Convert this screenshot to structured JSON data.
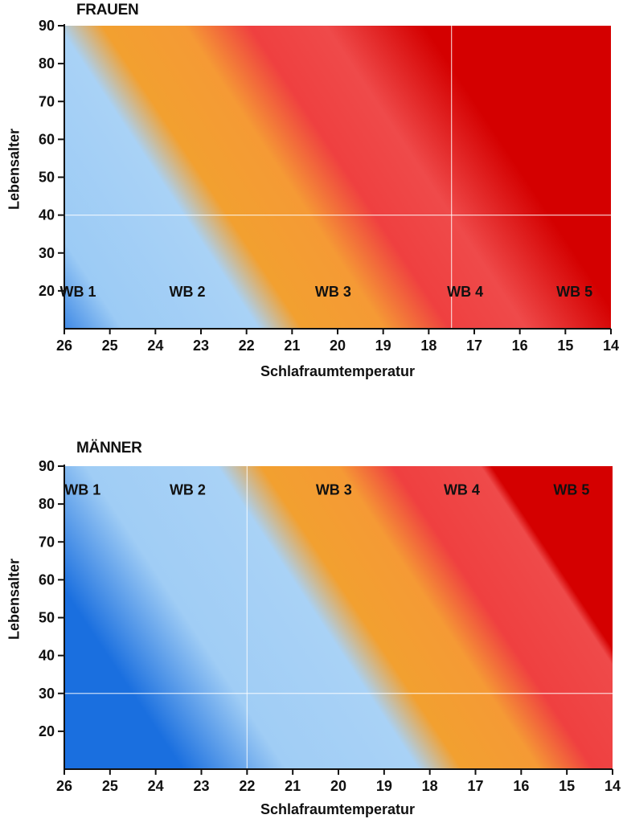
{
  "chart_data": [
    {
      "type": "heatmap",
      "title": "FRAUEN",
      "xlabel": "Schlafraumtemperatur",
      "ylabel": "Lebensalter",
      "x_ticks": [
        26,
        25,
        24,
        23,
        22,
        21,
        20,
        19,
        18,
        17,
        16,
        15,
        14
      ],
      "y_ticks": [
        20,
        30,
        40,
        50,
        60,
        70,
        80,
        90
      ],
      "xlim": [
        26,
        14
      ],
      "ylim": [
        10,
        90
      ],
      "x_reversed": true,
      "grid": false,
      "reference_lines": {
        "x": 17.5,
        "y": 40
      },
      "zones": [
        {
          "label": "WB 1",
          "color": "#1a6fdf"
        },
        {
          "label": "WB 2",
          "color": "#9ccbf5"
        },
        {
          "label": "WB 3",
          "color": "#f2a030"
        },
        {
          "label": "WB 4",
          "color": "#ef4040"
        },
        {
          "label": "WB 5",
          "color": "#d40000"
        }
      ],
      "zone_label_positions": [
        {
          "label": "WB 1",
          "x": 25.7,
          "y": 20
        },
        {
          "label": "WB 2",
          "x": 23.3,
          "y": 20
        },
        {
          "label": "WB 3",
          "x": 20.1,
          "y": 20
        },
        {
          "label": "WB 4",
          "x": 17.2,
          "y": 20
        },
        {
          "label": "WB 5",
          "x": 14.8,
          "y": 20
        }
      ],
      "gradient_stops": [
        {
          "x_at_age_20": 25.9,
          "color": "#1a6fdf"
        },
        {
          "x_at_age_20": 24.4,
          "color": "#9ccbf5"
        },
        {
          "x_at_age_20": 21.9,
          "color": "#a9d2f6"
        },
        {
          "x_at_age_20": 21.1,
          "color": "#f2a030"
        },
        {
          "x_at_age_20": 19.6,
          "color": "#f59a35"
        },
        {
          "x_at_age_20": 18.4,
          "color": "#ef4040"
        },
        {
          "x_at_age_20": 17.0,
          "color": "#ef4a4a"
        },
        {
          "x_at_age_20": 15.2,
          "color": "#d40000"
        }
      ],
      "zone_slope_deg_per_year": 0.055
    },
    {
      "type": "heatmap",
      "title": "MÄNNER",
      "xlabel": "Schlafraumtemperatur",
      "ylabel": "Lebensalter",
      "x_ticks": [
        26,
        25,
        24,
        23,
        22,
        21,
        20,
        19,
        18,
        17,
        16,
        15,
        14
      ],
      "y_ticks": [
        20,
        30,
        40,
        50,
        60,
        70,
        80,
        90
      ],
      "xlim": [
        26,
        14
      ],
      "ylim": [
        10,
        90
      ],
      "x_reversed": true,
      "grid": false,
      "reference_lines": {
        "x": 22,
        "y": 30
      },
      "zones": [
        {
          "label": "WB 1",
          "color": "#1a6fdf"
        },
        {
          "label": "WB 2",
          "color": "#9ccbf5"
        },
        {
          "label": "WB 3",
          "color": "#f2a030"
        },
        {
          "label": "WB 4",
          "color": "#ef4040"
        },
        {
          "label": "WB 5",
          "color": "#d40000"
        }
      ],
      "zone_label_positions": [
        {
          "label": "WB 1",
          "x": 25.6,
          "y": 84
        },
        {
          "label": "WB 2",
          "x": 23.3,
          "y": 84
        },
        {
          "label": "WB 3",
          "x": 20.1,
          "y": 84
        },
        {
          "label": "WB 4",
          "x": 17.3,
          "y": 84
        },
        {
          "label": "WB 5",
          "x": 14.9,
          "y": 84
        }
      ],
      "gradient_stops": [
        {
          "x_at_age_20": 23.3,
          "color": "#1a6fdf"
        },
        {
          "x_at_age_20": 21.4,
          "color": "#a0cdf5"
        },
        {
          "x_at_age_20": 19.0,
          "color": "#a9d2f6"
        },
        {
          "x_at_age_20": 18.2,
          "color": "#f2a030"
        },
        {
          "x_at_age_20": 16.8,
          "color": "#f59a35"
        },
        {
          "x_at_age_20": 15.8,
          "color": "#ef4040"
        },
        {
          "x_at_age_20": 14.2,
          "color": "#ef4a4a"
        },
        {
          "x_at_age_20": 12.0,
          "color": "#d40000"
        }
      ],
      "zone_slope_deg_per_year": 0.055
    }
  ]
}
